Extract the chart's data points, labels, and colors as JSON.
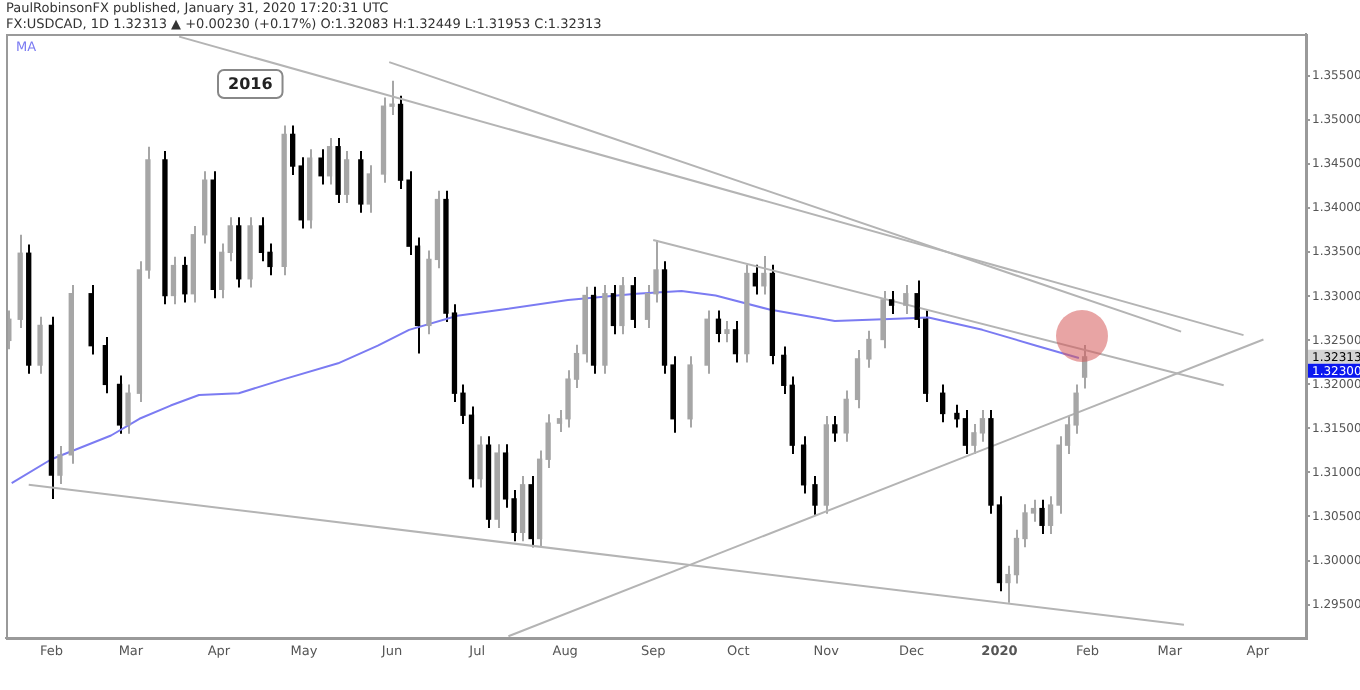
{
  "chart_data": {
    "type": "candlestick",
    "title": "PaulRobinsonFX published, January 31, 2020 17:20:31 UTC",
    "subtitle": "FX:USDCAD, 1D 1.32313 ▲ +0.00230 (+0.17%) O:1.32083 H:1.32449 L:1.31953 C:1.32313",
    "x": [
      "2019-01-17",
      "2019-01-21",
      "2019-01-24",
      "2019-01-28",
      "2019-02-01",
      "2019-02-04",
      "2019-02-08",
      "2019-02-15",
      "2019-02-20",
      "2019-02-25",
      "2019-02-28",
      "2019-03-04",
      "2019-03-07",
      "2019-03-13",
      "2019-03-16",
      "2019-03-20",
      "2019-03-23",
      "2019-03-27",
      "2019-03-30",
      "2019-04-02",
      "2019-04-05",
      "2019-04-08",
      "2019-04-12",
      "2019-04-16",
      "2019-04-19",
      "2019-04-24",
      "2019-04-27",
      "2019-04-30",
      "2019-05-03",
      "2019-05-07",
      "2019-05-10",
      "2019-05-13",
      "2019-05-16",
      "2019-05-21",
      "2019-05-24",
      "2019-05-29",
      "2019-06-01",
      "2019-06-04",
      "2019-06-07",
      "2019-06-10",
      "2019-06-14",
      "2019-06-17",
      "2019-06-20",
      "2019-06-23",
      "2019-06-26",
      "2019-06-29",
      "2019-07-02",
      "2019-07-05",
      "2019-07-08",
      "2019-07-11",
      "2019-07-14",
      "2019-07-17",
      "2019-07-20",
      "2019-07-23",
      "2019-07-26",
      "2019-07-30",
      "2019-08-02",
      "2019-08-05",
      "2019-08-08",
      "2019-08-11",
      "2019-08-15",
      "2019-08-18",
      "2019-08-21",
      "2019-08-25",
      "2019-08-30",
      "2019-09-02",
      "2019-09-05",
      "2019-09-08",
      "2019-09-14",
      "2019-09-20",
      "2019-09-24",
      "2019-09-27",
      "2019-09-30",
      "2019-10-04",
      "2019-10-07",
      "2019-10-10",
      "2019-10-13",
      "2019-10-17",
      "2019-10-20",
      "2019-10-24",
      "2019-10-28",
      "2019-11-01",
      "2019-11-04",
      "2019-11-08",
      "2019-11-12",
      "2019-11-16",
      "2019-11-21",
      "2019-11-24",
      "2019-11-29",
      "2019-12-03",
      "2019-12-06",
      "2019-12-12",
      "2019-12-17",
      "2019-12-20",
      "2019-12-23",
      "2019-12-26",
      "2019-12-29",
      "2020-01-01",
      "2020-01-04",
      "2020-01-07",
      "2020-01-10",
      "2020-01-13",
      "2020-01-16",
      "2020-01-19",
      "2020-01-22",
      "2020-01-25",
      "2020-01-28",
      "2020-01-31"
    ],
    "ohlc": [
      [
        1.325,
        1.3284,
        1.324,
        1.3274
      ],
      [
        1.3274,
        1.337,
        1.3264,
        1.3349
      ],
      [
        1.3349,
        1.3359,
        1.3212,
        1.3222
      ],
      [
        1.3222,
        1.3277,
        1.3212,
        1.3267
      ],
      [
        1.3267,
        1.3277,
        1.307,
        1.3097
      ],
      [
        1.3097,
        1.313,
        1.3087,
        1.312
      ],
      [
        1.312,
        1.3313,
        1.311,
        1.3303
      ],
      [
        1.3303,
        1.3313,
        1.3234,
        1.3244
      ],
      [
        1.3244,
        1.3254,
        1.319,
        1.32
      ],
      [
        1.32,
        1.321,
        1.3144,
        1.3154
      ],
      [
        1.3154,
        1.32,
        1.3144,
        1.319
      ],
      [
        1.319,
        1.334,
        1.318,
        1.333
      ],
      [
        1.333,
        1.347,
        1.332,
        1.3455
      ],
      [
        1.3455,
        1.3465,
        1.3291,
        1.3301
      ],
      [
        1.3301,
        1.3345,
        1.3291,
        1.3335
      ],
      [
        1.3335,
        1.3345,
        1.3293,
        1.3303
      ],
      [
        1.3303,
        1.338,
        1.3293,
        1.337
      ],
      [
        1.337,
        1.3442,
        1.336,
        1.3432
      ],
      [
        1.3432,
        1.3442,
        1.3298,
        1.3308
      ],
      [
        1.3308,
        1.336,
        1.3298,
        1.335
      ],
      [
        1.335,
        1.339,
        1.334,
        1.338
      ],
      [
        1.338,
        1.339,
        1.331,
        1.332
      ],
      [
        1.332,
        1.339,
        1.331,
        1.338
      ],
      [
        1.338,
        1.339,
        1.334,
        1.335
      ],
      [
        1.335,
        1.336,
        1.3324,
        1.3334
      ],
      [
        1.3334,
        1.3494,
        1.3324,
        1.3484
      ],
      [
        1.3484,
        1.3494,
        1.3438,
        1.3448
      ],
      [
        1.3448,
        1.3458,
        1.3377,
        1.3387
      ],
      [
        1.3387,
        1.3467,
        1.3377,
        1.3457
      ],
      [
        1.3457,
        1.3467,
        1.3427,
        1.3437
      ],
      [
        1.3437,
        1.348,
        1.3427,
        1.347
      ],
      [
        1.347,
        1.348,
        1.3406,
        1.3416
      ],
      [
        1.3416,
        1.3465,
        1.3406,
        1.3455
      ],
      [
        1.3455,
        1.3465,
        1.3395,
        1.3405
      ],
      [
        1.3405,
        1.3449,
        1.3395,
        1.3439
      ],
      [
        1.3439,
        1.3526,
        1.3429,
        1.3516
      ],
      [
        1.3516,
        1.3545,
        1.3506,
        1.3518
      ],
      [
        1.3518,
        1.3528,
        1.3422,
        1.3432
      ],
      [
        1.3432,
        1.3442,
        1.3347,
        1.3357
      ],
      [
        1.3357,
        1.3367,
        1.3235,
        1.3267
      ],
      [
        1.3267,
        1.3352,
        1.3257,
        1.3342
      ],
      [
        1.3342,
        1.342,
        1.3332,
        1.341
      ],
      [
        1.341,
        1.342,
        1.3271,
        1.3281
      ],
      [
        1.3281,
        1.3291,
        1.318,
        1.319
      ],
      [
        1.319,
        1.32,
        1.3155,
        1.3165
      ],
      [
        1.3165,
        1.3175,
        1.3083,
        1.3093
      ],
      [
        1.3093,
        1.3141,
        1.3083,
        1.3131
      ],
      [
        1.3131,
        1.3141,
        1.3037,
        1.3047
      ],
      [
        1.3047,
        1.3132,
        1.3037,
        1.3122
      ],
      [
        1.3122,
        1.3132,
        1.306,
        1.307
      ],
      [
        1.307,
        1.308,
        1.3022,
        1.3032
      ],
      [
        1.3032,
        1.3096,
        1.3022,
        1.3086
      ],
      [
        1.3086,
        1.3096,
        1.3015,
        1.3025
      ],
      [
        1.3025,
        1.3125,
        1.3015,
        1.3115
      ],
      [
        1.3115,
        1.3166,
        1.3105,
        1.3156
      ],
      [
        1.3156,
        1.3171,
        1.3146,
        1.3161
      ],
      [
        1.3161,
        1.3216,
        1.3151,
        1.3206
      ],
      [
        1.3206,
        1.3245,
        1.3196,
        1.3235
      ],
      [
        1.3235,
        1.3311,
        1.3225,
        1.3301
      ],
      [
        1.3301,
        1.3311,
        1.3212,
        1.3222
      ],
      [
        1.3222,
        1.3313,
        1.3212,
        1.3303
      ],
      [
        1.3303,
        1.3313,
        1.3257,
        1.3267
      ],
      [
        1.3267,
        1.3322,
        1.3257,
        1.3312
      ],
      [
        1.3312,
        1.3322,
        1.3264,
        1.3274
      ],
      [
        1.3274,
        1.3313,
        1.3264,
        1.3303
      ],
      [
        1.3303,
        1.3364,
        1.3293,
        1.333
      ],
      [
        1.333,
        1.334,
        1.3212,
        1.3222
      ],
      [
        1.3222,
        1.3232,
        1.3145,
        1.3161
      ],
      [
        1.3161,
        1.3232,
        1.3151,
        1.3222
      ],
      [
        1.3222,
        1.3284,
        1.3212,
        1.3274
      ],
      [
        1.3274,
        1.3284,
        1.3248,
        1.3258
      ],
      [
        1.3258,
        1.3272,
        1.3248,
        1.3262
      ],
      [
        1.3262,
        1.3272,
        1.3225,
        1.3235
      ],
      [
        1.3235,
        1.3336,
        1.3225,
        1.3326
      ],
      [
        1.3326,
        1.3336,
        1.3302,
        1.3312
      ],
      [
        1.3312,
        1.3346,
        1.3302,
        1.3326
      ],
      [
        1.3326,
        1.3336,
        1.3223,
        1.3233
      ],
      [
        1.3233,
        1.3243,
        1.3189,
        1.3199
      ],
      [
        1.3199,
        1.3209,
        1.3121,
        1.3131
      ],
      [
        1.3131,
        1.3141,
        1.3076,
        1.3086
      ],
      [
        1.3086,
        1.3096,
        1.3052,
        1.3063
      ],
      [
        1.3063,
        1.3164,
        1.3053,
        1.3154
      ],
      [
        1.3154,
        1.3164,
        1.3135,
        1.3145
      ],
      [
        1.3145,
        1.3193,
        1.3135,
        1.3183
      ],
      [
        1.3183,
        1.3239,
        1.3173,
        1.3229
      ],
      [
        1.3229,
        1.3261,
        1.3219,
        1.3251
      ],
      [
        1.3251,
        1.3306,
        1.3241,
        1.3296
      ],
      [
        1.3296,
        1.3306,
        1.328,
        1.329
      ],
      [
        1.329,
        1.3313,
        1.328,
        1.3303
      ],
      [
        1.3303,
        1.3318,
        1.3264,
        1.3274
      ],
      [
        1.3274,
        1.3284,
        1.318,
        1.319
      ],
      [
        1.319,
        1.32,
        1.3157,
        1.3167
      ],
      [
        1.3167,
        1.3177,
        1.3151,
        1.3161
      ],
      [
        1.3161,
        1.3171,
        1.3121,
        1.3131
      ],
      [
        1.3131,
        1.3155,
        1.3121,
        1.3145
      ],
      [
        1.3145,
        1.3171,
        1.3135,
        1.3161
      ],
      [
        1.3161,
        1.3171,
        1.3053,
        1.3063
      ],
      [
        1.3063,
        1.3073,
        1.2965,
        1.2975
      ],
      [
        1.2975,
        1.2994,
        1.2952,
        1.2984
      ],
      [
        1.2984,
        1.3035,
        1.2974,
        1.3025
      ],
      [
        1.3025,
        1.3064,
        1.3015,
        1.3054
      ],
      [
        1.3054,
        1.3069,
        1.3044,
        1.3059
      ],
      [
        1.3059,
        1.3069,
        1.303,
        1.304
      ],
      [
        1.304,
        1.3073,
        1.303,
        1.3063
      ],
      [
        1.3063,
        1.3141,
        1.3053,
        1.3131
      ],
      [
        1.3131,
        1.3164,
        1.3121,
        1.3154
      ],
      [
        1.3154,
        1.32,
        1.3144,
        1.319
      ],
      [
        1.32083,
        1.32449,
        1.31953,
        1.32313
      ]
    ],
    "colors": [
      "#a6a6a6",
      "#a6a6a6",
      "#000000",
      "#a6a6a6",
      "#000000",
      "#a6a6a6",
      "#a6a6a6",
      "#000000",
      "#000000",
      "#000000",
      "#a6a6a6",
      "#a6a6a6",
      "#a6a6a6",
      "#000000",
      "#a6a6a6",
      "#000000",
      "#a6a6a6",
      "#a6a6a6",
      "#000000",
      "#a6a6a6",
      "#a6a6a6",
      "#000000",
      "#a6a6a6",
      "#000000",
      "#000000",
      "#a6a6a6",
      "#000000",
      "#000000",
      "#a6a6a6",
      "#000000",
      "#a6a6a6",
      "#000000",
      "#a6a6a6",
      "#000000",
      "#a6a6a6",
      "#a6a6a6",
      "#a6a6a6",
      "#000000",
      "#000000",
      "#000000",
      "#a6a6a6",
      "#a6a6a6",
      "#000000",
      "#000000",
      "#000000",
      "#000000",
      "#a6a6a6",
      "#000000",
      "#a6a6a6",
      "#000000",
      "#000000",
      "#a6a6a6",
      "#000000",
      "#a6a6a6",
      "#a6a6a6",
      "#a6a6a6",
      "#a6a6a6",
      "#a6a6a6",
      "#a6a6a6",
      "#000000",
      "#a6a6a6",
      "#000000",
      "#a6a6a6",
      "#000000",
      "#a6a6a6",
      "#a6a6a6",
      "#000000",
      "#000000",
      "#a6a6a6",
      "#a6a6a6",
      "#000000",
      "#a6a6a6",
      "#000000",
      "#a6a6a6",
      "#000000",
      "#a6a6a6",
      "#000000",
      "#000000",
      "#000000",
      "#000000",
      "#000000",
      "#a6a6a6",
      "#000000",
      "#a6a6a6",
      "#a6a6a6",
      "#a6a6a6",
      "#a6a6a6",
      "#000000",
      "#a6a6a6",
      "#000000",
      "#000000",
      "#000000",
      "#000000",
      "#000000",
      "#a6a6a6",
      "#a6a6a6",
      "#000000",
      "#000000",
      "#a6a6a6",
      "#a6a6a6",
      "#a6a6a6",
      "#a6a6a6",
      "#000000",
      "#a6a6a6",
      "#a6a6a6",
      "#a6a6a6",
      "#a6a6a6",
      "#a6a6a6"
    ],
    "series": [
      {
        "name": "MA",
        "type": "line",
        "color": "#7b7bf2",
        "x": [
          "2019-01-18",
          "2019-02-01",
          "2019-02-22",
          "2019-03-04",
          "2019-03-15",
          "2019-03-25",
          "2019-04-08",
          "2019-04-24",
          "2019-05-13",
          "2019-05-27",
          "2019-06-07",
          "2019-06-24",
          "2019-07-10",
          "2019-08-02",
          "2019-08-26",
          "2019-09-11",
          "2019-09-23",
          "2019-10-12",
          "2019-11-04",
          "2019-11-21",
          "2019-12-07",
          "2019-12-26",
          "2020-01-14",
          "2020-01-29"
        ],
        "values": [
          1.3088,
          1.3115,
          1.3142,
          1.3161,
          1.3176,
          1.3188,
          1.319,
          1.3206,
          1.3224,
          1.3244,
          1.3262,
          1.3278,
          1.3285,
          1.3296,
          1.3303,
          1.3306,
          1.3301,
          1.3285,
          1.3272,
          1.3274,
          1.3276,
          1.3262,
          1.3244,
          1.323
        ]
      },
      {
        "type": "line",
        "color": "#b4b4b4",
        "x": [
          "2019-03-18",
          "2020-03-27"
        ],
        "values": [
          1.3595,
          1.3256
        ]
      },
      {
        "type": "line",
        "color": "#b4b4b4",
        "x": [
          "2019-05-31",
          "2020-03-05"
        ],
        "values": [
          1.3566,
          1.326
        ]
      },
      {
        "type": "line",
        "color": "#b4b4b4",
        "x": [
          "2019-09-01",
          "2020-03-20"
        ],
        "values": [
          1.3364,
          1.3199
        ]
      },
      {
        "type": "line",
        "color": "#b4b4b4",
        "x": [
          "2019-07-12",
          "2020-04-03"
        ],
        "values": [
          1.2914,
          1.3251
        ]
      },
      {
        "type": "line",
        "color": "#b4b4b4",
        "x": [
          "2019-01-24",
          "2020-03-06"
        ],
        "values": [
          1.3086,
          1.2927
        ]
      }
    ],
    "xlim": [
      "2019-01-16",
      "2020-04-18"
    ],
    "xticks": [
      {
        "value": "2019-02-01",
        "label": "Feb"
      },
      {
        "value": "2019-03-01",
        "label": "Mar"
      },
      {
        "value": "2019-04-01",
        "label": "Apr"
      },
      {
        "value": "2019-05-01",
        "label": "May"
      },
      {
        "value": "2019-06-01",
        "label": "Jun"
      },
      {
        "value": "2019-07-01",
        "label": "Jul"
      },
      {
        "value": "2019-08-01",
        "label": "Aug"
      },
      {
        "value": "2019-09-01",
        "label": "Sep"
      },
      {
        "value": "2019-10-01",
        "label": "Oct"
      },
      {
        "value": "2019-11-01",
        "label": "Nov"
      },
      {
        "value": "2019-12-01",
        "label": "Dec"
      },
      {
        "value": "2020-01-01",
        "label": "2020"
      },
      {
        "value": "2020-02-01",
        "label": "Feb"
      },
      {
        "value": "2020-03-01",
        "label": "Mar"
      },
      {
        "value": "2020-04-01",
        "label": "Apr"
      }
    ],
    "ylim": [
      1.2912,
      1.3598
    ],
    "yticks": [
      {
        "value": 1.295,
        "label": "1.29500"
      },
      {
        "value": 1.3,
        "label": "1.30000"
      },
      {
        "value": 1.305,
        "label": "1.30500"
      },
      {
        "value": 1.31,
        "label": "1.31000"
      },
      {
        "value": 1.315,
        "label": "1.31500"
      },
      {
        "value": 1.32,
        "label": "1.32000"
      },
      {
        "value": 1.325,
        "label": "1.32500"
      },
      {
        "value": 1.33,
        "label": "1.33000"
      },
      {
        "value": 1.335,
        "label": "1.33500"
      },
      {
        "value": 1.34,
        "label": "1.34000"
      },
      {
        "value": 1.345,
        "label": "1.34500"
      },
      {
        "value": 1.35,
        "label": "1.35000"
      },
      {
        "value": 1.355,
        "label": "1.35500"
      }
    ],
    "annotations": [
      "2016",
      "1.32313",
      "1.32300"
    ],
    "legend": "top left"
  }
}
